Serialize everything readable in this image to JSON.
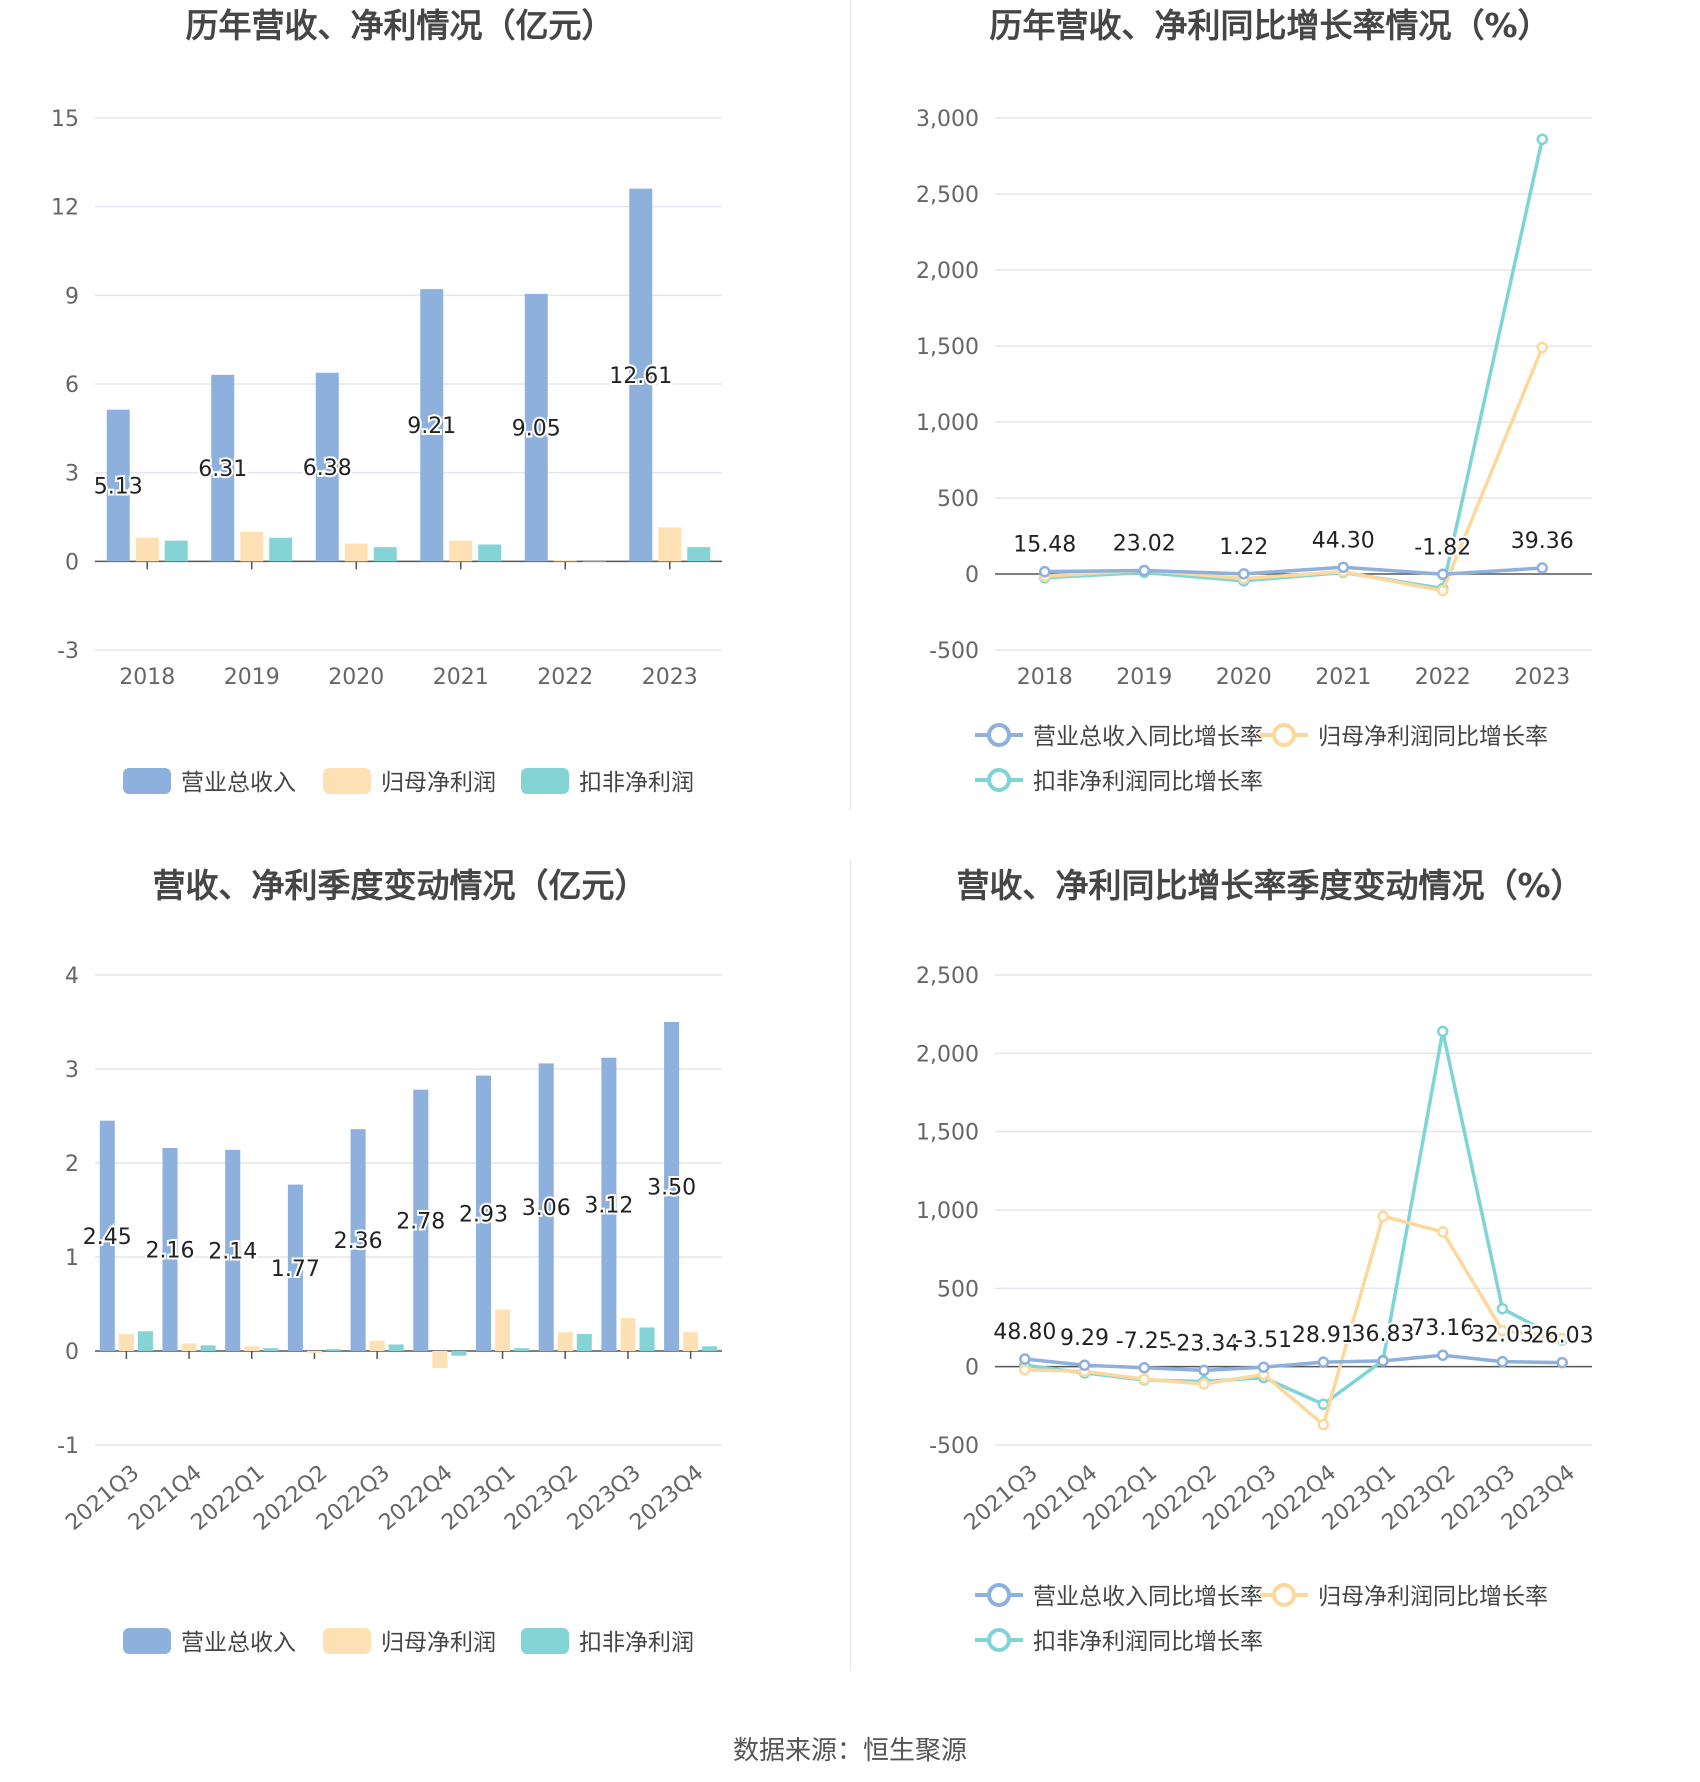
{
  "source": "数据来源：恒生聚源",
  "chart_data": [
    {
      "type": "bar",
      "title": "历年营收、净利情况（亿元）",
      "categories": [
        "2018",
        "2019",
        "2020",
        "2021",
        "2022",
        "2023"
      ],
      "ylim": [
        -3,
        15
      ],
      "yticks": [
        -3,
        0,
        3,
        6,
        9,
        12,
        15
      ],
      "legend_position": "bottom",
      "series": [
        {
          "name": "营业总收入",
          "color": "#8eb0dc",
          "values": [
            5.13,
            6.31,
            6.38,
            9.21,
            9.05,
            12.61
          ],
          "labels": [
            "5.13",
            "6.31",
            "6.38",
            "9.21",
            "9.05",
            "12.61"
          ]
        },
        {
          "name": "归母净利润",
          "color": "#fde1b4",
          "values": [
            0.8,
            1.0,
            0.6,
            0.7,
            0.04,
            1.15
          ]
        },
        {
          "name": "扣非净利润",
          "color": "#84d4d6",
          "values": [
            0.7,
            0.8,
            0.48,
            0.57,
            -0.02,
            0.48
          ]
        }
      ]
    },
    {
      "type": "line",
      "title": "历年营收、净利同比增长率情况（%）",
      "categories": [
        "2018",
        "2019",
        "2020",
        "2021",
        "2022",
        "2023"
      ],
      "ylim": [
        -500,
        3000
      ],
      "yticks": [
        -500,
        0,
        500,
        1000,
        1500,
        2000,
        2500,
        3000
      ],
      "ytick_labels": [
        "-500",
        "0",
        "500",
        "1,000",
        "1,500",
        "2,000",
        "2,500",
        "3,000"
      ],
      "legend_position": "bottom",
      "series": [
        {
          "name": "营业总收入同比增长率",
          "color": "#8eb0dc",
          "values": [
            15.48,
            23.02,
            1.22,
            44.3,
            -1.82,
            39.36
          ],
          "labels": [
            "15.48",
            "23.02",
            "1.22",
            "44.30",
            "-1.82",
            "39.36"
          ]
        },
        {
          "name": "归母净利润同比增长率",
          "color": "#fcd89c",
          "values": [
            -15,
            25,
            -30,
            15,
            -110,
            1490
          ]
        },
        {
          "name": "扣非净利润同比增长率",
          "color": "#7fd4d6",
          "values": [
            -25,
            10,
            -45,
            10,
            -95,
            2860
          ]
        }
      ]
    },
    {
      "type": "bar",
      "title": "营收、净利季度变动情况（亿元）",
      "categories": [
        "2021Q3",
        "2021Q4",
        "2022Q1",
        "2022Q2",
        "2022Q3",
        "2022Q4",
        "2023Q1",
        "2023Q2",
        "2023Q3",
        "2023Q4"
      ],
      "ylim": [
        -1,
        4
      ],
      "yticks": [
        -1,
        0,
        1,
        2,
        3,
        4
      ],
      "legend_position": "bottom",
      "series": [
        {
          "name": "营业总收入",
          "color": "#8eb0dc",
          "values": [
            2.45,
            2.16,
            2.14,
            1.77,
            2.36,
            2.78,
            2.93,
            3.06,
            3.12,
            3.5
          ],
          "labels": [
            "2.45",
            "2.16",
            "2.14",
            "1.77",
            "2.36",
            "2.78",
            "2.93",
            "3.06",
            "3.12",
            "3.50"
          ]
        },
        {
          "name": "归母净利润",
          "color": "#fde1b4",
          "values": [
            0.18,
            0.08,
            0.05,
            -0.02,
            0.11,
            -0.18,
            0.44,
            0.2,
            0.35,
            0.2
          ]
        },
        {
          "name": "扣非净利润",
          "color": "#84d4d6",
          "values": [
            0.21,
            0.06,
            0.03,
            0.02,
            0.07,
            -0.05,
            0.03,
            0.18,
            0.25,
            0.05
          ]
        }
      ]
    },
    {
      "type": "line",
      "title": "营收、净利同比增长率季度变动情况（%）",
      "categories": [
        "2021Q3",
        "2021Q4",
        "2022Q1",
        "2022Q2",
        "2022Q3",
        "2022Q4",
        "2023Q1",
        "2023Q2",
        "2023Q3",
        "2023Q4"
      ],
      "ylim": [
        -500,
        2500
      ],
      "yticks": [
        -500,
        0,
        500,
        1000,
        1500,
        2000,
        2500
      ],
      "ytick_labels": [
        "-500",
        "0",
        "500",
        "1,000",
        "1,500",
        "2,000",
        "2,500"
      ],
      "legend_position": "bottom",
      "series": [
        {
          "name": "营业总收入同比增长率",
          "color": "#8eb0dc",
          "values": [
            48.8,
            9.29,
            -7.25,
            -23.34,
            -3.51,
            28.91,
            36.83,
            73.16,
            32.03,
            26.03
          ],
          "labels": [
            "48.80",
            "9.29",
            "-7.25",
            "-23.34",
            "-3.51",
            "28.91",
            "36.83",
            "73.16",
            "32.03",
            "26.03"
          ]
        },
        {
          "name": "归母净利润同比增长率",
          "color": "#fcd89c",
          "values": [
            -20,
            -30,
            -80,
            -110,
            -50,
            -370,
            960,
            860,
            230,
            180
          ]
        },
        {
          "name": "扣非净利润同比增长率",
          "color": "#7fd4d6",
          "values": [
            10,
            -40,
            -85,
            -95,
            -70,
            -240,
            40,
            2140,
            370,
            170
          ]
        }
      ]
    }
  ]
}
